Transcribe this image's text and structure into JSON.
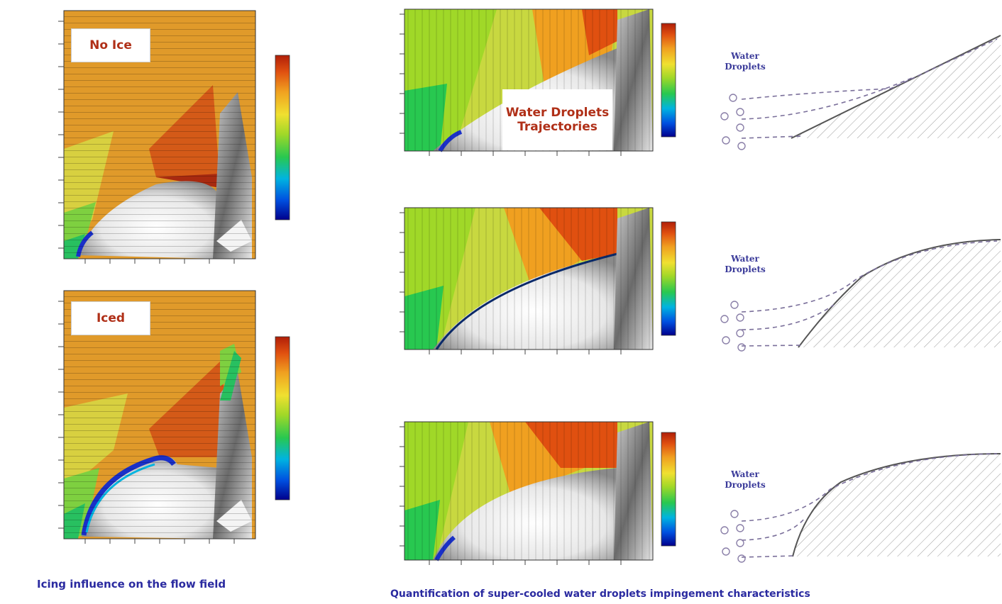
{
  "left_column": {
    "panels": [
      {
        "label": "No Ice"
      },
      {
        "label": "Iced"
      }
    ],
    "caption": "Icing influence on the flow field"
  },
  "right_column": {
    "contour_panels": [
      {
        "overlay_label": "Water Droplets Trajectories"
      },
      {
        "overlay_label": ""
      },
      {
        "overlay_label": ""
      }
    ],
    "droplet_sketches": [
      {
        "label": "Water Droplets"
      },
      {
        "label": "Water Droplets"
      },
      {
        "label": "Water Droplets"
      }
    ],
    "caption": "Quantification of super-cooled water droplets impingement characteristics"
  },
  "colors": {
    "caption_text": "#2a2aa0",
    "tag_text": "#b03018",
    "colormap": [
      "#00008c",
      "#0050e0",
      "#00b4e0",
      "#28c850",
      "#a0d828",
      "#f0e030",
      "#f0a020",
      "#e05010",
      "#b01e08"
    ]
  }
}
